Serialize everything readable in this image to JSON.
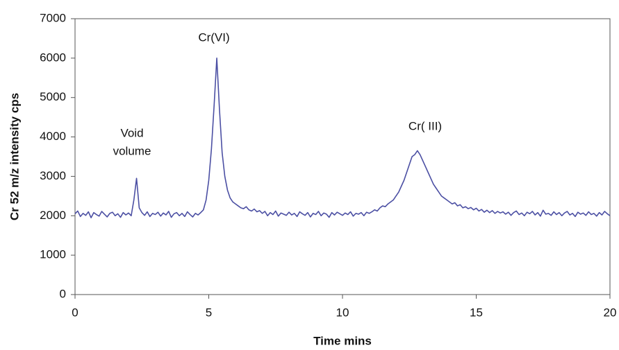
{
  "chart_data": {
    "type": "line",
    "xlabel": "Time mins",
    "ylabel": "Cr 52 m/z intensity cps",
    "annotations": [
      "Void",
      "volume",
      "Cr(VI)",
      "Cr( III)"
    ],
    "xlim": [
      0,
      20
    ],
    "xticks": [
      0,
      5,
      10,
      15,
      20
    ],
    "ylim": [
      0,
      7000
    ],
    "yticks": [
      0,
      1000,
      2000,
      3000,
      4000,
      5000,
      6000,
      7000
    ],
    "grid": false,
    "x": [
      0,
      0.1,
      0.2,
      0.3,
      0.4,
      0.5,
      0.6,
      0.7,
      0.8,
      0.9,
      1,
      1.1,
      1.2,
      1.3,
      1.4,
      1.5,
      1.6,
      1.7,
      1.8,
      1.9,
      2,
      2.1,
      2.2,
      2.3,
      2.4,
      2.5,
      2.6,
      2.7,
      2.8,
      2.9,
      3,
      3.1,
      3.2,
      3.3,
      3.4,
      3.5,
      3.6,
      3.7,
      3.8,
      3.9,
      4,
      4.1,
      4.2,
      4.3,
      4.4,
      4.5,
      4.6,
      4.7,
      4.8,
      4.9,
      5,
      5.1,
      5.2,
      5.3,
      5.4,
      5.5,
      5.6,
      5.7,
      5.8,
      5.9,
      6,
      6.1,
      6.2,
      6.3,
      6.4,
      6.5,
      6.6,
      6.7,
      6.8,
      6.9,
      7,
      7.1,
      7.2,
      7.3,
      7.4,
      7.5,
      7.6,
      7.7,
      7.8,
      7.9,
      8,
      8.1,
      8.2,
      8.3,
      8.4,
      8.5,
      8.6,
      8.7,
      8.8,
      8.9,
      9,
      9.1,
      9.2,
      9.3,
      9.4,
      9.5,
      9.6,
      9.7,
      9.8,
      9.9,
      10,
      10.1,
      10.2,
      10.3,
      10.4,
      10.5,
      10.6,
      10.7,
      10.8,
      10.9,
      11,
      11.1,
      11.2,
      11.3,
      11.4,
      11.5,
      11.6,
      11.7,
      11.8,
      11.9,
      12,
      12.1,
      12.2,
      12.3,
      12.4,
      12.5,
      12.6,
      12.7,
      12.8,
      12.9,
      13,
      13.1,
      13.2,
      13.3,
      13.4,
      13.5,
      13.6,
      13.7,
      13.8,
      13.9,
      14,
      14.1,
      14.2,
      14.3,
      14.4,
      14.5,
      14.6,
      14.7,
      14.8,
      14.9,
      15,
      15.1,
      15.2,
      15.3,
      15.4,
      15.5,
      15.6,
      15.7,
      15.8,
      15.9,
      16,
      16.1,
      16.2,
      16.3,
      16.4,
      16.5,
      16.6,
      16.7,
      16.8,
      16.9,
      17,
      17.1,
      17.2,
      17.3,
      17.4,
      17.5,
      17.6,
      17.7,
      17.8,
      17.9,
      18,
      18.1,
      18.2,
      18.3,
      18.4,
      18.5,
      18.6,
      18.7,
      18.8,
      18.9,
      19,
      19.1,
      19.2,
      19.3,
      19.4,
      19.5,
      19.6,
      19.7,
      19.8,
      19.9,
      20
    ],
    "series": [
      {
        "color": "#4b4fa3",
        "values": [
          2050,
          2120,
          1980,
          2060,
          2010,
          2100,
          1950,
          2080,
          2030,
          1990,
          2110,
          2040,
          1970,
          2060,
          2090,
          2000,
          2050,
          1960,
          2080,
          2020,
          2070,
          2000,
          2400,
          2950,
          2200,
          2080,
          2010,
          2100,
          1980,
          2060,
          2030,
          2090,
          1990,
          2070,
          2020,
          2110,
          1960,
          2050,
          2080,
          2000,
          2060,
          1980,
          2100,
          2030,
          1970,
          2060,
          2020,
          2080,
          2150,
          2400,
          2900,
          3700,
          4800,
          6000,
          4700,
          3600,
          3000,
          2650,
          2450,
          2350,
          2300,
          2250,
          2200,
          2180,
          2230,
          2150,
          2120,
          2170,
          2100,
          2130,
          2060,
          2110,
          2000,
          2080,
          2030,
          2120,
          1990,
          2070,
          2040,
          2010,
          2090,
          2020,
          2060,
          1980,
          2100,
          2050,
          2010,
          2080,
          1970,
          2060,
          2030,
          2110,
          2000,
          2070,
          2040,
          1960,
          2080,
          2020,
          2090,
          2050,
          2010,
          2070,
          2030,
          2100,
          1990,
          2060,
          2040,
          2080,
          2000,
          2090,
          2060,
          2100,
          2150,
          2120,
          2200,
          2250,
          2230,
          2300,
          2350,
          2400,
          2500,
          2600,
          2750,
          2900,
          3100,
          3300,
          3500,
          3550,
          3650,
          3550,
          3400,
          3250,
          3100,
          2950,
          2800,
          2700,
          2600,
          2500,
          2450,
          2400,
          2350,
          2300,
          2330,
          2250,
          2280,
          2200,
          2230,
          2180,
          2210,
          2150,
          2190,
          2120,
          2160,
          2090,
          2140,
          2080,
          2130,
          2060,
          2110,
          2070,
          2100,
          2040,
          2090,
          2010,
          2080,
          2120,
          2030,
          2070,
          2000,
          2090,
          2050,
          2110,
          2020,
          2080,
          1990,
          2140,
          2040,
          2060,
          2010,
          2100,
          2030,
          2080,
          2000,
          2070,
          2110,
          2020,
          2060,
          1980,
          2090,
          2040,
          2070,
          2010,
          2100,
          2030,
          2060,
          1990,
          2080,
          2020,
          2110,
          2050,
          2000
        ]
      }
    ]
  }
}
